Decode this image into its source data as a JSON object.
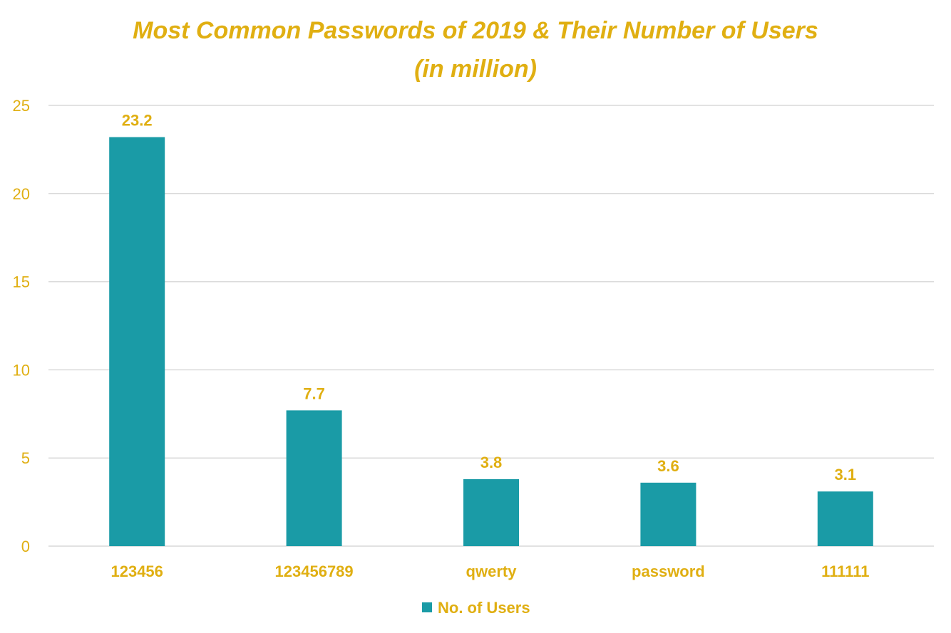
{
  "chart_data": {
    "type": "bar",
    "title": "Most Common Passwords of 2019 & Their Number of Users",
    "subtitle": "(in million)",
    "categories": [
      "123456",
      "123456789",
      "qwerty",
      "password",
      "111111"
    ],
    "series": [
      {
        "name": "No. of Users",
        "values": [
          23.2,
          7.7,
          3.8,
          3.6,
          3.1
        ]
      }
    ],
    "data_labels": [
      "23.2",
      "7.7",
      "3.8",
      "3.6",
      "3.1"
    ],
    "y_ticks": [
      0,
      5,
      10,
      15,
      20,
      25
    ],
    "ylim": [
      0,
      25
    ],
    "xlabel": "",
    "ylabel": "",
    "grid": true,
    "legend_position": "bottom"
  },
  "colors": {
    "bar": "#1A9BA6",
    "text_accent": "#E0AF12",
    "grid": "#D9D9D9",
    "background": "#FFFFFF"
  }
}
